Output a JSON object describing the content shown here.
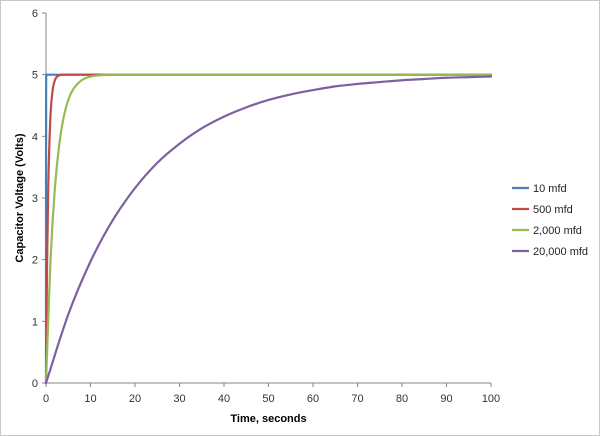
{
  "chart_data": {
    "type": "line",
    "title": "",
    "xlabel": "Time, seconds",
    "ylabel": "Capacitor Voltage (Volts)",
    "xlim": [
      0,
      100
    ],
    "ylim": [
      0,
      6
    ],
    "x_ticks": [
      "0",
      "10",
      "20",
      "30",
      "40",
      "50",
      "60",
      "70",
      "80",
      "90",
      "100"
    ],
    "y_ticks": [
      "0",
      "1",
      "2",
      "3",
      "4",
      "5",
      "6"
    ],
    "grid": false,
    "legend_position": "right",
    "series": [
      {
        "name": "10 mfd",
        "color": "#4a7ebb",
        "x": [
          0,
          0.01,
          0.03,
          0.05,
          0.1,
          0.5,
          1,
          5,
          20,
          50,
          100
        ],
        "y": [
          0,
          3.16,
          4.75,
          4.97,
          5.0,
          5.0,
          5.0,
          5.0,
          5.0,
          5.0,
          5.0
        ]
      },
      {
        "name": "500 mfd",
        "color": "#be4b48",
        "x": [
          0,
          0.25,
          0.5,
          1,
          1.5,
          2,
          3,
          4,
          5,
          6,
          8,
          10,
          15,
          20,
          50,
          100
        ],
        "y": [
          0,
          1.97,
          3.16,
          4.32,
          4.75,
          4.91,
          4.99,
          5.0,
          5.0,
          5.0,
          5.0,
          5.0,
          5.0,
          5.0,
          5.0,
          5.0
        ]
      },
      {
        "name": "2,000 mfd",
        "color": "#98b954",
        "x": [
          0,
          1,
          2,
          3,
          4,
          5,
          6,
          8,
          10,
          12,
          15,
          20,
          30,
          50,
          100
        ],
        "y": [
          0,
          1.97,
          3.16,
          3.88,
          4.32,
          4.59,
          4.75,
          4.91,
          4.97,
          4.99,
          5.0,
          5.0,
          5.0,
          5.0,
          5.0
        ]
      },
      {
        "name": "20,000 mfd",
        "color": "#7d60a0",
        "x": [
          0,
          5,
          10,
          15,
          20,
          25,
          30,
          35,
          40,
          45,
          50,
          55,
          60,
          65,
          70,
          75,
          80,
          85,
          90,
          95,
          100
        ],
        "y": [
          0,
          1.11,
          1.97,
          2.64,
          3.16,
          3.57,
          3.88,
          4.13,
          4.32,
          4.47,
          4.59,
          4.68,
          4.75,
          4.81,
          4.85,
          4.88,
          4.91,
          4.93,
          4.95,
          4.96,
          4.97
        ]
      }
    ]
  }
}
